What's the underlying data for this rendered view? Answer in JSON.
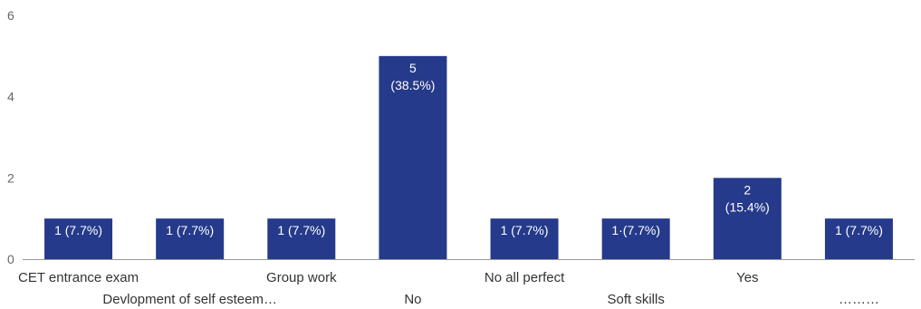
{
  "chart_data": {
    "type": "bar",
    "categories": [
      "CET entrance exam",
      "Devlopment of self esteem…",
      "Group work",
      "No",
      "No all perfect",
      "Soft skills",
      "Yes",
      "………"
    ],
    "values": [
      1,
      1,
      1,
      5,
      1,
      1,
      2,
      1
    ],
    "data_labels": [
      [
        "1 (7.7%)"
      ],
      [
        "1 (7.7%)"
      ],
      [
        "1 (7.7%)"
      ],
      [
        "5",
        "(38.5%)"
      ],
      [
        "1 (7.7%)"
      ],
      [
        "1·(7.7%)"
      ],
      [
        "2",
        "(15.4%)"
      ],
      [
        "1 (7.7%)"
      ]
    ],
    "y_ticks": [
      "0",
      "2",
      "4",
      "6"
    ],
    "ylim": [
      0,
      6
    ],
    "title": "",
    "xlabel": "",
    "ylabel": "",
    "grid": false,
    "colors": {
      "bar": "#253a8a",
      "axis": "#999999"
    }
  }
}
